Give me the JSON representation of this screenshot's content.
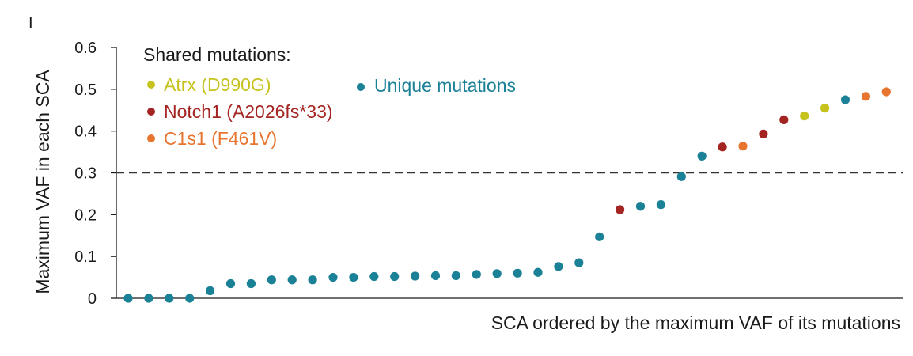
{
  "panel_label": "I",
  "chart_data": {
    "type": "scatter",
    "xlabel": "SCA ordered by the maximum VAF of its mutations",
    "ylabel": "Maximum VAF in each SCA",
    "ylim": [
      0,
      0.6
    ],
    "yticks": [
      "0",
      "0.1",
      "0.2",
      "0.3",
      "0.4",
      "0.5",
      "0.6"
    ],
    "threshold": 0.3,
    "legend": {
      "heading": "Shared mutations:",
      "entries": [
        {
          "key": "atrx",
          "label": "Atrx (D990G)",
          "color": "#c6c21e"
        },
        {
          "key": "notch1",
          "label": "Notch1 (A2026fs*33)",
          "color": "#a42422"
        },
        {
          "key": "c1s1",
          "label": "C1s1 (F461V)",
          "color": "#e8752f"
        },
        {
          "key": "unique",
          "label": "Unique mutations",
          "color": "#1a8196"
        }
      ]
    },
    "points": [
      {
        "x": 1,
        "y": 0.0,
        "group": "unique"
      },
      {
        "x": 2,
        "y": 0.0,
        "group": "unique"
      },
      {
        "x": 3,
        "y": 0.0,
        "group": "unique"
      },
      {
        "x": 4,
        "y": 0.0,
        "group": "unique"
      },
      {
        "x": 5,
        "y": 0.018,
        "group": "unique"
      },
      {
        "x": 6,
        "y": 0.035,
        "group": "unique"
      },
      {
        "x": 7,
        "y": 0.035,
        "group": "unique"
      },
      {
        "x": 8,
        "y": 0.044,
        "group": "unique"
      },
      {
        "x": 9,
        "y": 0.044,
        "group": "unique"
      },
      {
        "x": 10,
        "y": 0.044,
        "group": "unique"
      },
      {
        "x": 11,
        "y": 0.05,
        "group": "unique"
      },
      {
        "x": 12,
        "y": 0.05,
        "group": "unique"
      },
      {
        "x": 13,
        "y": 0.052,
        "group": "unique"
      },
      {
        "x": 14,
        "y": 0.052,
        "group": "unique"
      },
      {
        "x": 15,
        "y": 0.053,
        "group": "unique"
      },
      {
        "x": 16,
        "y": 0.054,
        "group": "unique"
      },
      {
        "x": 17,
        "y": 0.054,
        "group": "unique"
      },
      {
        "x": 18,
        "y": 0.057,
        "group": "unique"
      },
      {
        "x": 19,
        "y": 0.059,
        "group": "unique"
      },
      {
        "x": 20,
        "y": 0.06,
        "group": "unique"
      },
      {
        "x": 21,
        "y": 0.062,
        "group": "unique"
      },
      {
        "x": 22,
        "y": 0.076,
        "group": "unique"
      },
      {
        "x": 23,
        "y": 0.085,
        "group": "unique"
      },
      {
        "x": 24,
        "y": 0.147,
        "group": "unique"
      },
      {
        "x": 25,
        "y": 0.212,
        "group": "notch1"
      },
      {
        "x": 26,
        "y": 0.22,
        "group": "unique"
      },
      {
        "x": 27,
        "y": 0.224,
        "group": "unique"
      },
      {
        "x": 28,
        "y": 0.291,
        "group": "unique"
      },
      {
        "x": 29,
        "y": 0.34,
        "group": "unique"
      },
      {
        "x": 30,
        "y": 0.362,
        "group": "notch1"
      },
      {
        "x": 31,
        "y": 0.364,
        "group": "c1s1"
      },
      {
        "x": 32,
        "y": 0.393,
        "group": "notch1"
      },
      {
        "x": 33,
        "y": 0.427,
        "group": "notch1"
      },
      {
        "x": 34,
        "y": 0.436,
        "group": "atrx"
      },
      {
        "x": 35,
        "y": 0.455,
        "group": "atrx"
      },
      {
        "x": 36,
        "y": 0.475,
        "group": "unique"
      },
      {
        "x": 37,
        "y": 0.483,
        "group": "c1s1"
      },
      {
        "x": 38,
        "y": 0.494,
        "group": "c1s1"
      }
    ]
  }
}
